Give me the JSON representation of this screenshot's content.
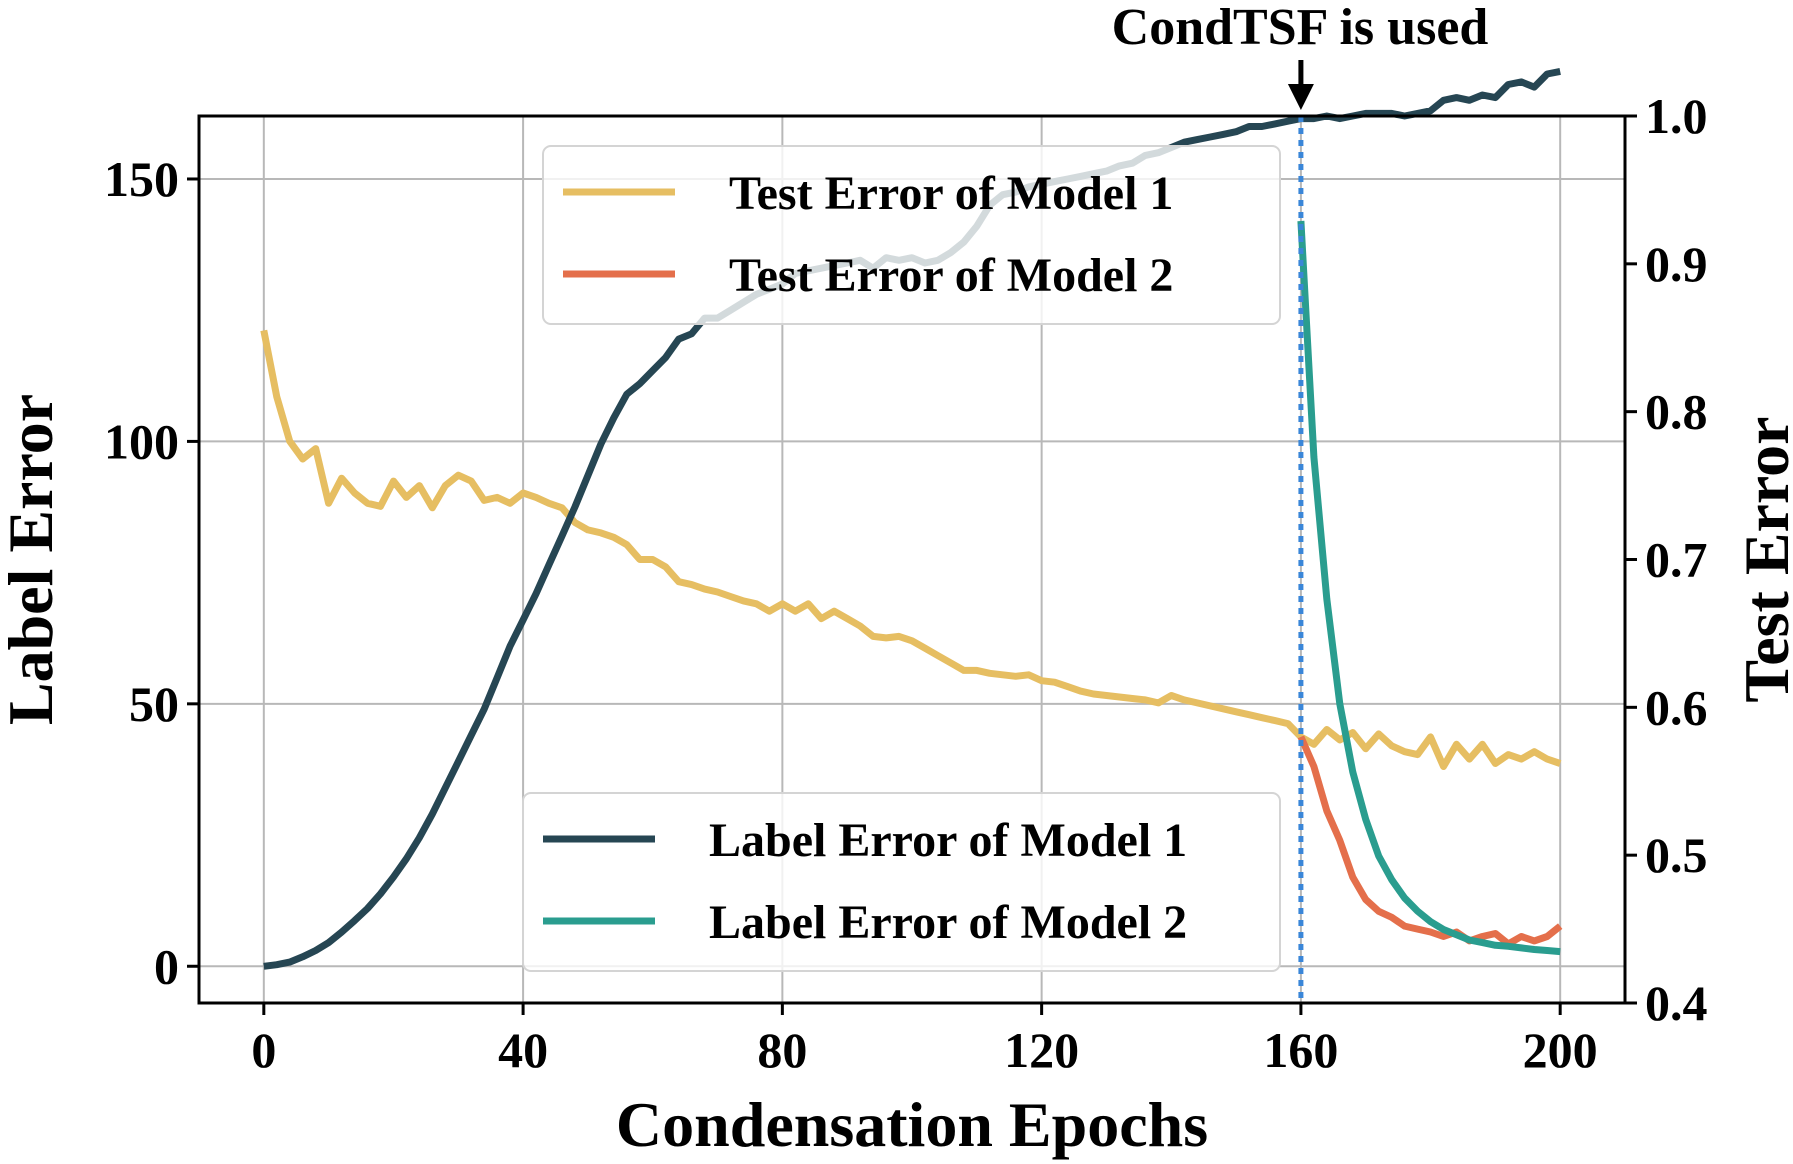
{
  "chart_data": {
    "type": "line",
    "xlabel": "Condensation Epochs",
    "ylabel_left": "Label Error",
    "ylabel_right": "Test Error",
    "xlim": [
      -10,
      210
    ],
    "ylim_left": [
      -7,
      162
    ],
    "ylim_right": [
      0.4,
      1.0
    ],
    "x_ticks": [
      0,
      40,
      80,
      120,
      160,
      200
    ],
    "x_tick_labels": [
      "0",
      "40",
      "80",
      "120",
      "160",
      "200"
    ],
    "y_left_ticks": [
      0,
      50,
      100,
      150
    ],
    "y_left_tick_labels": [
      "0",
      "50",
      "100",
      "150"
    ],
    "y_right_ticks": [
      0.4,
      0.5,
      0.6,
      0.7,
      0.8,
      0.9,
      1.0
    ],
    "y_right_tick_labels": [
      "0.4",
      "0.5",
      "0.6",
      "0.7",
      "0.8",
      "0.9",
      "1.0"
    ],
    "grid": true,
    "annotation": {
      "text": "CondTSF is used",
      "x": 160
    },
    "legend_top": {
      "placement": "upper-center",
      "entries": [
        "Test Error of Model 1",
        "Test Error of Model 2"
      ]
    },
    "legend_bottom": {
      "placement": "lower-center",
      "entries": [
        "Label Error of Model 1",
        "Label Error of Model 2"
      ]
    },
    "series": [
      {
        "name": "Test Error of Model 1",
        "axis": "right",
        "color": "#E6BE62",
        "x": [
          0,
          2,
          4,
          6,
          8,
          10,
          12,
          14,
          16,
          18,
          20,
          22,
          24,
          26,
          28,
          30,
          32,
          34,
          36,
          38,
          40,
          42,
          44,
          46,
          48,
          50,
          52,
          54,
          56,
          58,
          60,
          62,
          64,
          66,
          68,
          70,
          72,
          74,
          76,
          78,
          80,
          82,
          84,
          86,
          88,
          90,
          92,
          94,
          96,
          98,
          100,
          102,
          104,
          106,
          108,
          110,
          112,
          114,
          116,
          118,
          120,
          122,
          124,
          126,
          128,
          130,
          132,
          134,
          136,
          138,
          140,
          142,
          144,
          146,
          148,
          150,
          152,
          154,
          156,
          158,
          160,
          162,
          164,
          166,
          168,
          170,
          172,
          174,
          176,
          178,
          180,
          182,
          184,
          186,
          188,
          190,
          192,
          194,
          196,
          198,
          200
        ],
        "values": [
          0.855,
          0.81,
          0.78,
          0.768,
          0.775,
          0.738,
          0.755,
          0.745,
          0.738,
          0.736,
          0.753,
          0.742,
          0.75,
          0.735,
          0.75,
          0.757,
          0.753,
          0.74,
          0.742,
          0.738,
          0.745,
          0.742,
          0.738,
          0.735,
          0.725,
          0.72,
          0.718,
          0.715,
          0.71,
          0.7,
          0.7,
          0.695,
          0.685,
          0.683,
          0.68,
          0.678,
          0.675,
          0.672,
          0.67,
          0.665,
          0.67,
          0.665,
          0.67,
          0.66,
          0.665,
          0.66,
          0.655,
          0.648,
          0.647,
          0.648,
          0.645,
          0.64,
          0.635,
          0.63,
          0.625,
          0.625,
          0.623,
          0.622,
          0.621,
          0.622,
          0.618,
          0.617,
          0.614,
          0.611,
          0.609,
          0.608,
          0.607,
          0.606,
          0.605,
          0.603,
          0.608,
          0.605,
          0.603,
          0.601,
          0.599,
          0.597,
          0.595,
          0.593,
          0.591,
          0.589,
          0.58,
          0.575,
          0.585,
          0.578,
          0.583,
          0.572,
          0.582,
          0.574,
          0.57,
          0.568,
          0.58,
          0.56,
          0.575,
          0.565,
          0.575,
          0.562,
          0.568,
          0.565,
          0.57,
          0.565,
          0.562
        ]
      },
      {
        "name": "Test Error of Model 2",
        "axis": "right",
        "color": "#E46F4B",
        "x": [
          160,
          162,
          164,
          166,
          168,
          170,
          172,
          174,
          176,
          178,
          180,
          182,
          184,
          186,
          188,
          190,
          192,
          194,
          196,
          198,
          200
        ],
        "values": [
          0.58,
          0.56,
          0.53,
          0.51,
          0.485,
          0.47,
          0.462,
          0.458,
          0.452,
          0.45,
          0.448,
          0.445,
          0.448,
          0.442,
          0.445,
          0.447,
          0.44,
          0.445,
          0.442,
          0.445,
          0.452
        ]
      },
      {
        "name": "Label Error of Model 1",
        "axis": "left",
        "color": "#264653",
        "x": [
          0,
          2,
          4,
          6,
          8,
          10,
          12,
          14,
          16,
          18,
          20,
          22,
          24,
          26,
          28,
          30,
          32,
          34,
          36,
          38,
          40,
          42,
          44,
          46,
          48,
          50,
          52,
          54,
          56,
          58,
          60,
          62,
          64,
          66,
          68,
          70,
          72,
          74,
          76,
          78,
          80,
          82,
          84,
          86,
          88,
          90,
          92,
          94,
          96,
          98,
          100,
          102,
          104,
          106,
          108,
          110,
          112,
          114,
          116,
          118,
          120,
          122,
          124,
          126,
          128,
          130,
          132,
          134,
          136,
          138,
          140,
          142,
          144,
          146,
          148,
          150,
          152,
          154,
          156,
          158,
          160,
          162,
          164,
          166,
          168,
          170,
          172,
          174,
          176,
          178,
          180,
          182,
          184,
          186,
          188,
          190,
          192,
          194,
          196,
          198,
          200
        ],
        "values": [
          0,
          0.3,
          0.8,
          1.8,
          3,
          4.5,
          6.5,
          8.7,
          11,
          13.8,
          17,
          20.5,
          24.5,
          29,
          34,
          39,
          44,
          49,
          55,
          61,
          66,
          71,
          76.5,
          82,
          87.5,
          93.5,
          99.5,
          104.5,
          109,
          111,
          113.5,
          116,
          119.5,
          120.5,
          123.5,
          123.5,
          125,
          126.5,
          128,
          129,
          130,
          132,
          132.5,
          133,
          133.5,
          134,
          134.5,
          133,
          135,
          134.5,
          135,
          134,
          134.5,
          136,
          138,
          141,
          145,
          147,
          147.5,
          148.5,
          149,
          149.5,
          150,
          150.5,
          151,
          151.5,
          152.5,
          153,
          154.5,
          155,
          156,
          157,
          157.5,
          158,
          158.5,
          159,
          160,
          160,
          160.5,
          161,
          161.5,
          161.5,
          162,
          161.5,
          162,
          162.5,
          162.5,
          162.5,
          162,
          162.5,
          163,
          165,
          165.5,
          165,
          166,
          165.5,
          168,
          168.5,
          167.5,
          170,
          170.5
        ]
      },
      {
        "name": "Label Error of Model 2",
        "axis": "left",
        "color": "#2A9D8F",
        "x": [
          160,
          162,
          164,
          166,
          168,
          170,
          172,
          174,
          176,
          178,
          180,
          182,
          184,
          186,
          188,
          190,
          192,
          194,
          196,
          198,
          200
        ],
        "values": [
          142,
          97,
          70,
          50,
          37,
          28,
          21,
          16.5,
          13,
          10.5,
          8.5,
          7,
          6,
          5,
          4.5,
          4,
          3.8,
          3.5,
          3.2,
          3,
          2.8
        ]
      }
    ]
  }
}
